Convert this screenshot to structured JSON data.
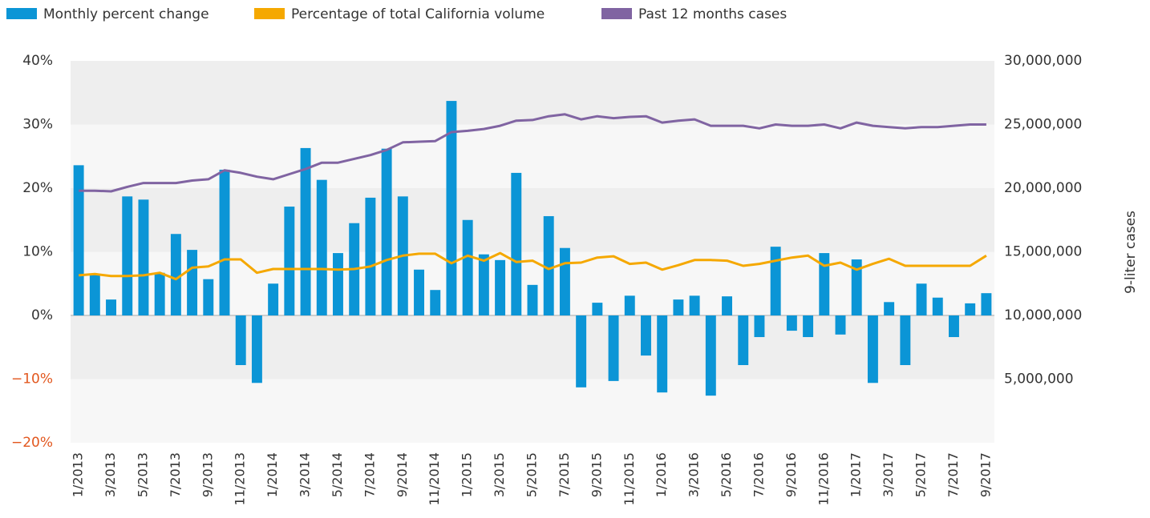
{
  "chart_data": {
    "type": "bar",
    "y2_label": "9-liter cases",
    "categories": [
      "1/2013",
      null,
      "3/2013",
      null,
      "5/2013",
      null,
      "7/2013",
      null,
      "9/2013",
      null,
      "11/2013",
      null,
      "1/2014",
      null,
      "3/2014",
      null,
      "5/2014",
      null,
      "7/2014",
      null,
      "9/2014",
      null,
      "11/2014",
      null,
      "1/2015",
      null,
      "3/2015",
      null,
      "5/2015",
      null,
      "7/2015",
      null,
      "9/2015",
      null,
      "11/2015",
      null,
      "1/2016",
      null,
      "3/2016",
      null,
      "5/2016",
      null,
      "7/2016",
      null,
      "9/2016",
      null,
      "11/2016",
      null,
      "1/2017",
      null,
      "3/2017",
      null,
      "5/2017",
      null,
      "7/2017",
      null,
      "9/2017"
    ],
    "series": [
      {
        "name": "Monthly percent change",
        "type": "bar",
        "color": "#0b95d6",
        "axis": "y",
        "values": [
          23.6,
          6.4,
          2.5,
          18.7,
          18.2,
          6.7,
          12.8,
          10.3,
          5.7,
          22.9,
          -7.8,
          -10.6,
          5.0,
          17.1,
          26.3,
          21.3,
          9.8,
          14.5,
          18.5,
          26.2,
          18.7,
          7.2,
          4.0,
          33.7,
          15.0,
          9.6,
          8.7,
          22.4,
          4.8,
          15.6,
          10.6,
          -11.3,
          2.0,
          -10.3,
          3.1,
          -6.3,
          -12.1,
          2.5,
          3.1,
          -12.6,
          3.0,
          -7.8,
          -3.4,
          10.8,
          -2.4,
          -3.4,
          9.8,
          -3.0,
          8.8,
          -10.6,
          2.1,
          -7.8,
          5.0,
          2.8,
          -3.4,
          1.9,
          3.5
        ]
      },
      {
        "name": "Percentage of total California volume",
        "type": "line",
        "color": "#f5a800",
        "axis": "y",
        "values": [
          6.3,
          6.5,
          6.2,
          6.2,
          6.3,
          6.7,
          5.7,
          7.5,
          7.7,
          8.8,
          8.8,
          6.7,
          7.3,
          7.3,
          7.3,
          7.3,
          7.2,
          7.3,
          7.7,
          8.7,
          9.4,
          9.7,
          9.7,
          8.2,
          9.4,
          8.6,
          9.8,
          8.4,
          8.6,
          7.3,
          8.2,
          8.3,
          9.1,
          9.3,
          8.1,
          8.3,
          7.2,
          7.9,
          8.7,
          8.7,
          8.6,
          7.8,
          8.1,
          8.6,
          9.1,
          9.4,
          7.8,
          8.3,
          7.2,
          8.1,
          8.9,
          7.8,
          7.8,
          7.8,
          7.8,
          7.8,
          9.4
        ]
      },
      {
        "name": "Past 12 months cases",
        "type": "line",
        "color": "#8064a2",
        "axis": "y2",
        "values": [
          19800000,
          19800000,
          19750000,
          20100000,
          20400000,
          20400000,
          20400000,
          20600000,
          20700000,
          21400000,
          21200000,
          20900000,
          20700000,
          21100000,
          21500000,
          22000000,
          22000000,
          22300000,
          22600000,
          23000000,
          23600000,
          23650000,
          23700000,
          24400000,
          24500000,
          24650000,
          24900000,
          25300000,
          25350000,
          25650000,
          25800000,
          25400000,
          25650000,
          25500000,
          25600000,
          25650000,
          25150000,
          25300000,
          25400000,
          24900000,
          24900000,
          24900000,
          24700000,
          25000000,
          24900000,
          24900000,
          25000000,
          24700000,
          25150000,
          24900000,
          24800000,
          24700000,
          24800000,
          24800000,
          24900000,
          25000000,
          25000000
        ]
      }
    ],
    "ylim": [
      -20,
      40
    ],
    "yticks": [
      {
        "value": -20,
        "label": "−20%"
      },
      {
        "value": -10,
        "label": "−10%"
      },
      {
        "value": 0,
        "label": "0%"
      },
      {
        "value": 10,
        "label": "10%"
      },
      {
        "value": 20,
        "label": "20%"
      },
      {
        "value": 30,
        "label": "30%"
      },
      {
        "value": 40,
        "label": "40%"
      }
    ],
    "y2lim": [
      0,
      30000000
    ],
    "y2ticks": [
      {
        "value": 5000000,
        "label": "5,000,000"
      },
      {
        "value": 10000000,
        "label": "10,000,000"
      },
      {
        "value": 15000000,
        "label": "15,000,000"
      },
      {
        "value": 20000000,
        "label": "20,000,000"
      },
      {
        "value": 25000000,
        "label": "25,000,000"
      },
      {
        "value": 30000000,
        "label": "30,000,000"
      }
    ],
    "negative_tick_color": "#e2571e",
    "band_colors": [
      "#f7f7f7",
      "#eeeeee"
    ],
    "legend": "top-left"
  }
}
